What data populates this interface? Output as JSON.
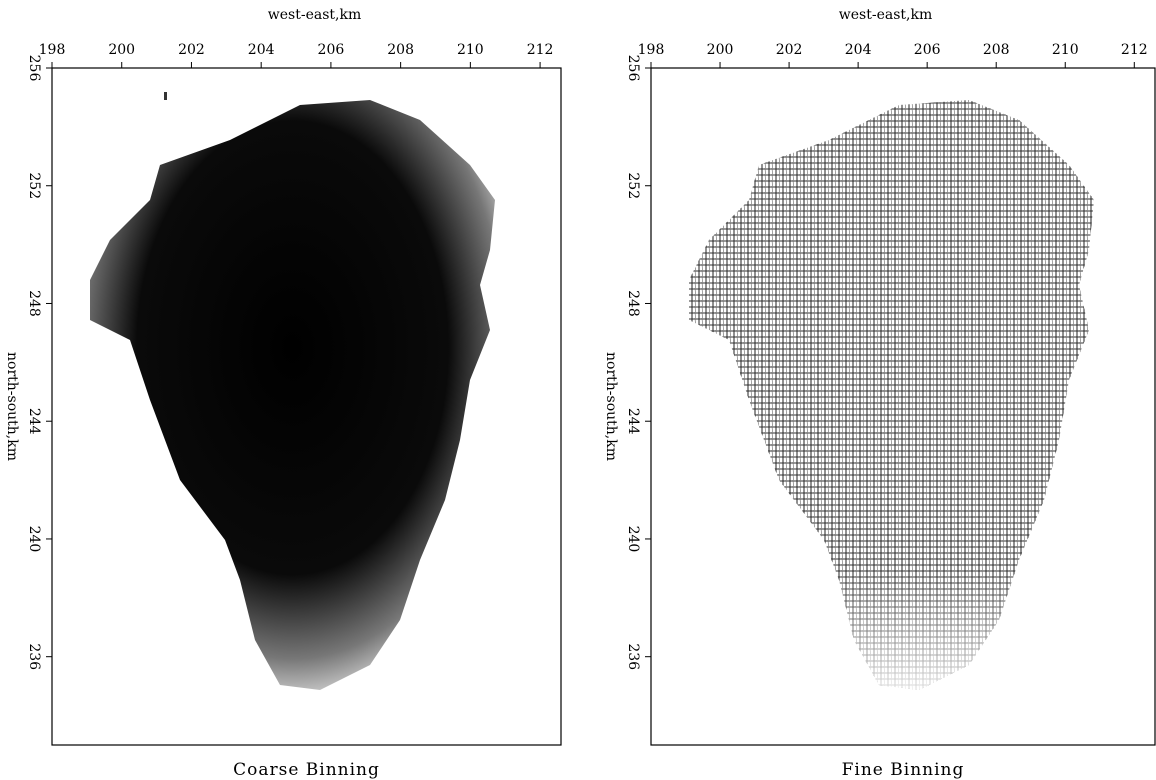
{
  "chart_data": [
    {
      "type": "image",
      "xlabel": "west-east,km",
      "ylabel": "north-south,km",
      "caption": "Coarse Binning",
      "xlim": [
        198,
        212.6
      ],
      "xticks": [
        198,
        200,
        202,
        204,
        206,
        208,
        210,
        212
      ],
      "ylim": [
        256,
        233
      ],
      "yticks": [
        256,
        252,
        248,
        244,
        240,
        236
      ]
    },
    {
      "type": "image",
      "xlabel": "west-east,km",
      "ylabel": "north-south,km",
      "caption": "Fine Binning",
      "xlim": [
        198,
        212.6
      ],
      "xticks": [
        198,
        200,
        202,
        204,
        206,
        208,
        210,
        212
      ],
      "ylim": [
        256,
        233
      ],
      "yticks": [
        256,
        252,
        248,
        244,
        240,
        236
      ]
    }
  ]
}
